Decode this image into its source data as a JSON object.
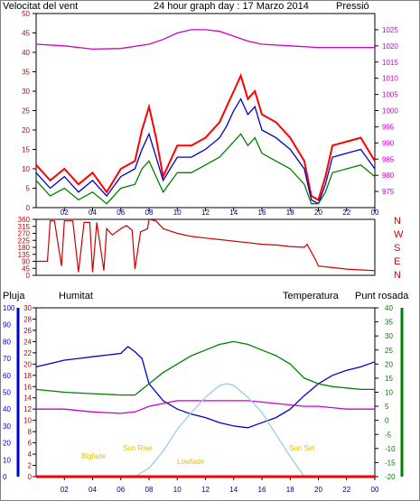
{
  "header": {
    "wind_label": "Velocitat del vent",
    "title": "24 hour graph day : 17 Marzo 2014",
    "pressure_label": "Pressió"
  },
  "bottom_header": {
    "rain_label": "Pluja",
    "humidity_label": "Humitat",
    "temperature_label": "Temperatura",
    "dewpoint_label": "Punt rosada"
  },
  "sun_labels": {
    "twilight": "Bigfade",
    "sunrise": "Sun Rise",
    "altitude": "Lowfade",
    "sunset": "Sun Set"
  },
  "colors": {
    "wind_gust": "#ff0000",
    "wind_avg": "#0000cc",
    "wind_speed": "#008000",
    "pressure": "#cc00cc",
    "direction": "#cc0000",
    "humidity": "#0000cc",
    "temperature": "#008000",
    "dewpoint": "#cc00cc",
    "solar": "#99ccee",
    "rain": "#ff0000",
    "sun_text": "#e0c000"
  },
  "chart_data": [
    {
      "type": "line",
      "name": "wind-pressure",
      "x_ticks": [
        "02",
        "04",
        "06",
        "08",
        "10",
        "12",
        "14",
        "16",
        "18",
        "20",
        "22",
        "00"
      ],
      "xlim": [
        0,
        24
      ],
      "ylim_left": [
        0,
        50
      ],
      "yticks_left": [
        0,
        5,
        10,
        15,
        20,
        25,
        30,
        35,
        40,
        45,
        50
      ],
      "ylim_right": [
        970,
        1030
      ],
      "yticks_right": [
        975,
        980,
        985,
        990,
        995,
        1000,
        1005,
        1010,
        1015,
        1020,
        1025
      ],
      "series": [
        {
          "key": "gust",
          "x": [
            0,
            1,
            2,
            3,
            4,
            5,
            6,
            7,
            7.5,
            8,
            8.5,
            9,
            10,
            11,
            12,
            13,
            13.5,
            14,
            14.5,
            15,
            15.5,
            16,
            17,
            18,
            19,
            19.5,
            20,
            20.5,
            21,
            22,
            23,
            24
          ],
          "values": [
            11,
            7,
            10,
            6,
            9,
            4,
            10,
            12,
            20,
            26,
            18,
            8,
            16,
            16,
            18,
            22,
            26,
            30,
            34,
            28,
            30,
            24,
            22,
            18,
            12,
            3,
            2,
            8,
            16,
            17,
            18,
            12
          ]
        },
        {
          "key": "avg",
          "x": [
            0,
            1,
            2,
            3,
            4,
            5,
            6,
            7,
            7.5,
            8,
            8.5,
            9,
            10,
            11,
            12,
            13,
            13.5,
            14,
            14.5,
            15,
            15.5,
            16,
            17,
            18,
            19,
            19.5,
            20,
            20.5,
            21,
            22,
            23,
            24
          ],
          "values": [
            9,
            5,
            8,
            4,
            7,
            3,
            8,
            10,
            15,
            19,
            13,
            7,
            13,
            13,
            15,
            18,
            21,
            25,
            28,
            24,
            26,
            20,
            18,
            15,
            10,
            2,
            1,
            6,
            13,
            14,
            15,
            10
          ]
        },
        {
          "key": "speed",
          "x": [
            0,
            1,
            2,
            3,
            4,
            5,
            6,
            7,
            7.5,
            8,
            8.5,
            9,
            10,
            11,
            12,
            13,
            13.5,
            14,
            14.5,
            15,
            15.5,
            16,
            17,
            18,
            19,
            19.5,
            20,
            20.5,
            21,
            22,
            23,
            24
          ],
          "values": [
            7,
            3,
            5,
            2,
            4,
            1,
            5,
            6,
            10,
            12,
            8,
            4,
            9,
            9,
            11,
            13,
            15,
            17,
            19,
            16,
            18,
            14,
            12,
            10,
            6,
            1,
            1,
            4,
            9,
            10,
            11,
            8
          ]
        },
        {
          "key": "pressure",
          "x": [
            0,
            2,
            4,
            6,
            8,
            9,
            10,
            11,
            12,
            13,
            14,
            15,
            16,
            18,
            20,
            22,
            24
          ],
          "values": [
            1020.5,
            1020,
            1019,
            1019.2,
            1020.5,
            1022,
            1024,
            1025,
            1025,
            1024.5,
            1023,
            1021.5,
            1020.5,
            1020,
            1019.5,
            1019.5,
            1019.5
          ]
        }
      ]
    },
    {
      "type": "line",
      "name": "wind-direction",
      "x_ticks": [
        "02",
        "04",
        "06",
        "08",
        "10",
        "12",
        "14",
        "16",
        "18",
        "20",
        "22",
        "00"
      ],
      "xlim": [
        0,
        24
      ],
      "ylim": [
        0,
        360
      ],
      "yticks": [
        0,
        45,
        90,
        135,
        180,
        225,
        270,
        315,
        360
      ],
      "compass": [
        "N",
        "W",
        "S",
        "E",
        "N"
      ],
      "x": [
        0,
        0.8,
        1,
        1.3,
        1.8,
        2,
        2.6,
        3,
        3.4,
        3.8,
        4,
        4.3,
        4.8,
        5,
        5.4,
        6,
        6.4,
        6.8,
        7,
        7.4,
        7.9,
        8,
        8.5,
        9,
        10,
        11,
        12,
        13,
        14,
        15,
        16,
        17,
        18,
        19,
        19.2,
        19.8,
        20,
        21,
        22,
        23,
        24
      ],
      "values": [
        90,
        90,
        350,
        350,
        60,
        350,
        350,
        20,
        340,
        340,
        20,
        340,
        30,
        300,
        260,
        300,
        320,
        290,
        40,
        280,
        300,
        360,
        350,
        300,
        270,
        250,
        240,
        230,
        220,
        210,
        200,
        195,
        185,
        180,
        200,
        100,
        60,
        50,
        40,
        35,
        30
      ]
    },
    {
      "type": "line",
      "name": "humidity-temperature",
      "x_ticks": [
        "02",
        "04",
        "06",
        "08",
        "10",
        "12",
        "14",
        "16",
        "18",
        "20",
        "22",
        "00"
      ],
      "xlim": [
        0,
        24
      ],
      "ylim_humidity": [
        0,
        100
      ],
      "yticks_humidity": [
        0,
        10,
        20,
        30,
        40,
        50,
        60,
        70,
        80,
        90,
        100
      ],
      "ylim_rain": [
        0,
        30
      ],
      "yticks_rain": [
        0,
        2,
        4,
        6,
        8,
        10,
        12,
        14,
        16,
        18,
        20,
        22,
        24,
        26,
        28,
        30
      ],
      "ylim_temperature": [
        -20,
        40
      ],
      "yticks_temperature": [
        -20,
        -15,
        -10,
        -5,
        0,
        5,
        10,
        15,
        20,
        25,
        30,
        35,
        40
      ],
      "series": [
        {
          "key": "humidity",
          "x": [
            0,
            1,
            2,
            3,
            4,
            5,
            6,
            6.5,
            7,
            7.5,
            8,
            9,
            10,
            11,
            12,
            13,
            14,
            15,
            16,
            17,
            18,
            19,
            20,
            21,
            22,
            23,
            24
          ],
          "values": [
            65,
            67,
            69,
            70,
            71,
            72,
            73,
            77,
            74,
            70,
            55,
            45,
            40,
            37,
            35,
            32,
            30,
            29,
            32,
            35,
            40,
            48,
            55,
            60,
            63,
            65,
            68
          ]
        },
        {
          "key": "temperature",
          "x": [
            0,
            2,
            4,
            6,
            7,
            8,
            9,
            10,
            11,
            12,
            13,
            14,
            15,
            16,
            17,
            18,
            19,
            20,
            21,
            22,
            23,
            24
          ],
          "values": [
            11,
            10,
            9.5,
            9,
            9,
            13,
            17,
            20,
            23,
            25,
            27,
            28,
            27,
            25,
            23,
            20,
            15,
            13,
            12,
            11.5,
            11,
            11
          ]
        },
        {
          "key": "dewpoint",
          "x": [
            0,
            2,
            4,
            6,
            7,
            8,
            9,
            10,
            11,
            12,
            13,
            14,
            15,
            16,
            17,
            18,
            19,
            20,
            22,
            24
          ],
          "values": [
            4,
            4,
            3,
            2.5,
            3,
            5,
            6,
            7,
            7,
            7,
            7,
            7,
            7,
            6.5,
            6,
            5.5,
            5,
            5,
            4,
            4
          ]
        },
        {
          "key": "solar",
          "x": [
            7,
            8,
            9,
            10,
            11,
            12,
            13,
            13.5,
            14,
            15,
            16,
            17,
            18,
            19
          ],
          "values": [
            0,
            5,
            15,
            28,
            38,
            47,
            54,
            55,
            54,
            47,
            38,
            25,
            12,
            0
          ]
        },
        {
          "key": "rain",
          "x": [
            0,
            24
          ],
          "values": [
            0,
            0
          ]
        }
      ]
    }
  ]
}
